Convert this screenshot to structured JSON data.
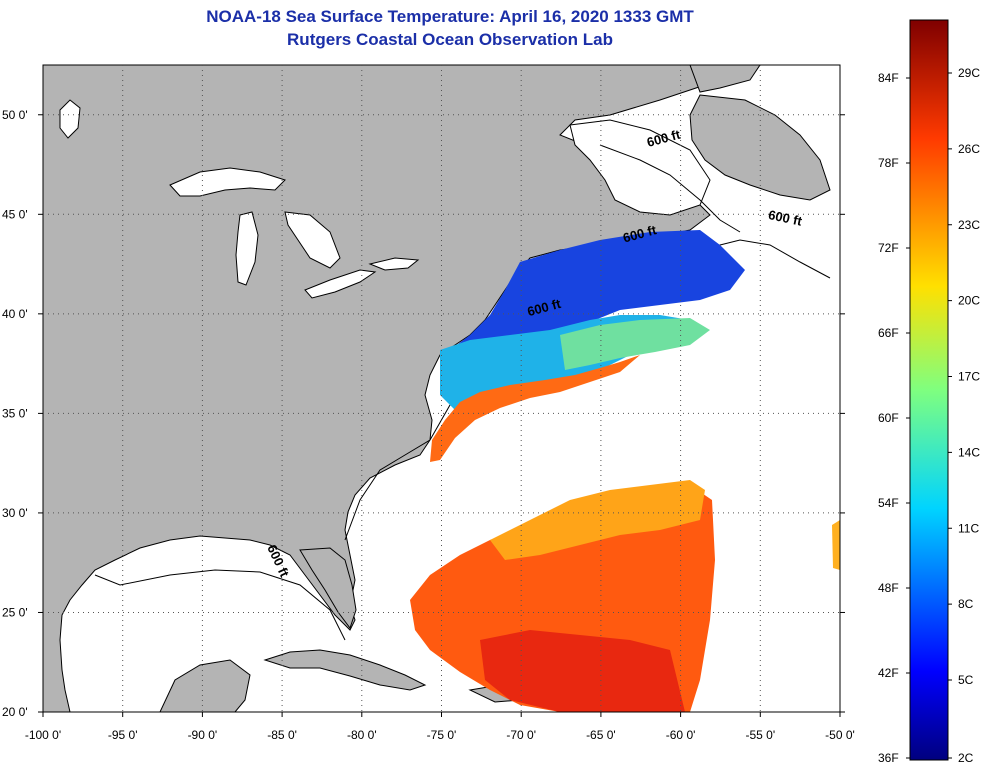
{
  "header": {
    "title": "NOAA-18 Sea Surface Temperature:  April 16, 2020 1333 GMT",
    "subtitle": "Rutgers Coastal Ocean Observation Lab"
  },
  "map": {
    "lon_range": [
      -100,
      -50
    ],
    "lat_range": [
      20,
      52.5
    ],
    "lat_ticks": [
      {
        "value": 50,
        "label": "50 0'"
      },
      {
        "value": 45,
        "label": "45 0'"
      },
      {
        "value": 40,
        "label": "40 0'"
      },
      {
        "value": 35,
        "label": "35 0'"
      },
      {
        "value": 30,
        "label": "30 0'"
      },
      {
        "value": 25,
        "label": "25 0'"
      },
      {
        "value": 20,
        "label": "20 0'"
      }
    ],
    "lon_ticks": [
      {
        "value": -100,
        "label": "-100 0'"
      },
      {
        "value": -95,
        "label": "-95 0'"
      },
      {
        "value": -90,
        "label": "-90 0'"
      },
      {
        "value": -85,
        "label": "-85 0'"
      },
      {
        "value": -80,
        "label": "-80 0'"
      },
      {
        "value": -75,
        "label": "-75 0'"
      },
      {
        "value": -70,
        "label": "-70 0'"
      },
      {
        "value": -65,
        "label": "-65 0'"
      },
      {
        "value": -60,
        "label": "-60 0'"
      },
      {
        "value": -55,
        "label": "-55 0'"
      },
      {
        "value": -50,
        "label": "-50 0'"
      }
    ],
    "contour_labels": [
      {
        "text": "600 ft",
        "lon": -61,
        "lat": 48.6
      },
      {
        "text": "600 ft",
        "lon": -53.5,
        "lat": 44.6
      },
      {
        "text": "600 ft",
        "lon": -62.5,
        "lat": 43.8
      },
      {
        "text": "600 ft",
        "lon": -68.5,
        "lat": 40.1
      },
      {
        "text": "600 ft",
        "lon": -85.5,
        "lat": 27.5
      }
    ],
    "colors": {
      "land": "#b4b4b4",
      "coast": "#000000",
      "no_data": "#ffffff",
      "grid": "#555555"
    }
  },
  "colorbar": {
    "fahrenheit_labels": [
      "84F",
      "78F",
      "72F",
      "66F",
      "60F",
      "54F",
      "48F",
      "42F",
      "36F"
    ],
    "celsius_labels": [
      "29C",
      "26C",
      "23C",
      "20C",
      "17C",
      "14C",
      "11C",
      "8C",
      "5C",
      "2C"
    ],
    "range_c": [
      2,
      31
    ],
    "colormap": "jet"
  }
}
